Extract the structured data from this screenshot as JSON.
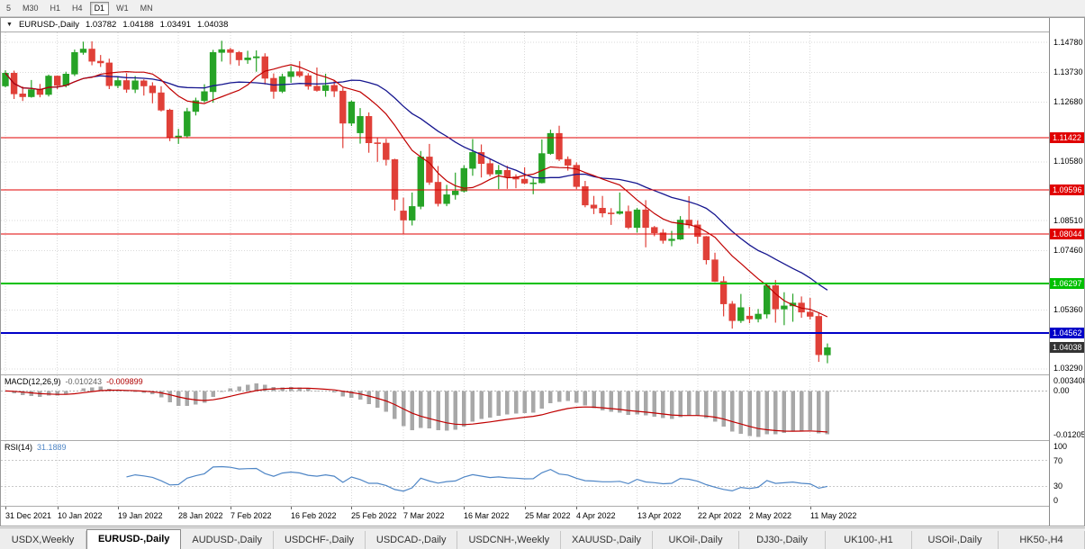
{
  "toolbar": {
    "timeframes": [
      {
        "label": "5",
        "active": false
      },
      {
        "label": "M30",
        "active": false
      },
      {
        "label": "H1",
        "active": false
      },
      {
        "label": "H4",
        "active": false
      },
      {
        "label": "D1",
        "active": true
      },
      {
        "label": "W1",
        "active": false
      },
      {
        "label": "MN",
        "active": false
      }
    ]
  },
  "header": {
    "collapse_icon": "▼",
    "symbol": "EURUSD-,Daily",
    "open": "1.03782",
    "high": "1.04188",
    "low": "1.03491",
    "close": "1.04038"
  },
  "colors": {
    "up_candle": "#26A326",
    "down_candle": "#E04038",
    "ma_fast": "#C00000",
    "ma_slow": "#16168F",
    "grid": "#D9D9D9",
    "macd_hist": "#A8A8A8",
    "macd_signal": "#C00000",
    "rsi_line": "#4F86C6",
    "current_badge": "#333333"
  },
  "price_axis": {
    "labels": [
      "1.14780",
      "1.13730",
      "1.12680",
      "1.10580",
      "1.08510",
      "1.07460",
      "1.05360",
      "1.03290"
    ],
    "current": {
      "label": "1.04038",
      "value": 1.04038
    }
  },
  "chart": {
    "hlines": [
      {
        "value": 1.11422,
        "label": "1.11422",
        "color": "#E00000",
        "width": 1
      },
      {
        "value": 1.09596,
        "label": "1.09596",
        "color": "#E00000",
        "width": 1
      },
      {
        "value": 1.08044,
        "label": "1.08044",
        "color": "#E00000",
        "width": 1
      },
      {
        "value": 1.06297,
        "label": "1.06297",
        "color": "#00C000",
        "width": 2
      },
      {
        "value": 1.04562,
        "label": "1.04562",
        "color": "#0000C8",
        "width": 2
      }
    ],
    "candles": [
      [
        1.1325,
        1.138,
        1.132,
        1.137
      ],
      [
        1.137,
        1.1379,
        1.1279,
        1.1297
      ],
      [
        1.1297,
        1.1323,
        1.1272,
        1.1287
      ],
      [
        1.1287,
        1.1346,
        1.1284,
        1.1312
      ],
      [
        1.1312,
        1.1332,
        1.1285,
        1.1295
      ],
      [
        1.1295,
        1.1365,
        1.1288,
        1.136
      ],
      [
        1.136,
        1.1362,
        1.1314,
        1.1327
      ],
      [
        1.1327,
        1.1375,
        1.132,
        1.1367
      ],
      [
        1.1367,
        1.1453,
        1.136,
        1.1443
      ],
      [
        1.1443,
        1.1481,
        1.1435,
        1.1455
      ],
      [
        1.1455,
        1.1482,
        1.1398,
        1.1412
      ],
      [
        1.1412,
        1.1434,
        1.1392,
        1.1406
      ],
      [
        1.1406,
        1.1421,
        1.1314,
        1.1326
      ],
      [
        1.1326,
        1.1358,
        1.1317,
        1.1344
      ],
      [
        1.1344,
        1.137,
        1.1301,
        1.1313
      ],
      [
        1.1313,
        1.136,
        1.13,
        1.1343
      ],
      [
        1.1343,
        1.1348,
        1.1291,
        1.1325
      ],
      [
        1.1325,
        1.1338,
        1.1264,
        1.1301
      ],
      [
        1.1301,
        1.1324,
        1.1235,
        1.124
      ],
      [
        1.124,
        1.1245,
        1.1131,
        1.1145
      ],
      [
        1.1145,
        1.1174,
        1.1121,
        1.1149
      ],
      [
        1.1149,
        1.1248,
        1.1141,
        1.1235
      ],
      [
        1.1235,
        1.1284,
        1.1221,
        1.1273
      ],
      [
        1.1273,
        1.1331,
        1.1267,
        1.1305
      ],
      [
        1.1305,
        1.1452,
        1.1266,
        1.1443
      ],
      [
        1.1443,
        1.1484,
        1.1411,
        1.1453
      ],
      [
        1.1453,
        1.1459,
        1.1401,
        1.1443
      ],
      [
        1.1443,
        1.1448,
        1.1396,
        1.1417
      ],
      [
        1.1417,
        1.1449,
        1.1403,
        1.1424
      ],
      [
        1.1424,
        1.145,
        1.1375,
        1.1428
      ],
      [
        1.1428,
        1.144,
        1.133,
        1.1352
      ],
      [
        1.1352,
        1.1369,
        1.128,
        1.1306
      ],
      [
        1.1306,
        1.1368,
        1.13,
        1.1358
      ],
      [
        1.1358,
        1.1395,
        1.1336,
        1.1375
      ],
      [
        1.1375,
        1.1412,
        1.1355,
        1.1361
      ],
      [
        1.1361,
        1.137,
        1.1312,
        1.1324
      ],
      [
        1.1324,
        1.139,
        1.1305,
        1.1309
      ],
      [
        1.1309,
        1.1368,
        1.1287,
        1.1327
      ],
      [
        1.1327,
        1.1344,
        1.1286,
        1.1307
      ],
      [
        1.1307,
        1.1319,
        1.1106,
        1.1194
      ],
      [
        1.1194,
        1.1274,
        1.1184,
        1.1269
      ],
      [
        1.116,
        1.1247,
        1.1122,
        1.1218
      ],
      [
        1.1218,
        1.1232,
        1.109,
        1.1125
      ],
      [
        1.1125,
        1.1143,
        1.1058,
        1.1124
      ],
      [
        1.1124,
        1.1139,
        1.1045,
        1.1066
      ],
      [
        1.1066,
        1.1069,
        1.0886,
        1.0926
      ],
      [
        1.0885,
        1.0932,
        1.0806,
        1.0853
      ],
      [
        1.0853,
        1.095,
        1.0834,
        1.0901
      ],
      [
        1.0901,
        1.1096,
        1.0891,
        1.1075
      ],
      [
        1.1075,
        1.1121,
        1.0977,
        1.0986
      ],
      [
        1.0986,
        1.1043,
        1.0901,
        1.0911
      ],
      [
        1.0911,
        1.0977,
        1.0902,
        1.0942
      ],
      [
        1.0942,
        1.102,
        1.0925,
        1.0955
      ],
      [
        1.0955,
        1.1046,
        1.095,
        1.1035
      ],
      [
        1.1035,
        1.1138,
        1.1009,
        1.1091
      ],
      [
        1.1091,
        1.1119,
        1.1003,
        1.1052
      ],
      [
        1.1052,
        1.1069,
        1.1007,
        1.1015
      ],
      [
        1.1015,
        1.1047,
        1.0962,
        1.1028
      ],
      [
        1.1028,
        1.1044,
        1.0963,
        1.1005
      ],
      [
        1.1005,
        1.1014,
        1.0965,
        1.0997
      ],
      [
        1.0997,
        1.1039,
        1.0979,
        1.0983
      ],
      [
        1.0983,
        1.0999,
        1.0944,
        1.0984
      ],
      [
        1.0984,
        1.1137,
        1.0982,
        1.1087
      ],
      [
        1.1087,
        1.1171,
        1.1083,
        1.1158
      ],
      [
        1.1158,
        1.1185,
        1.1061,
        1.1067
      ],
      [
        1.1067,
        1.1077,
        1.1027,
        1.1046
      ],
      [
        1.1046,
        1.1056,
        1.0962,
        1.0971
      ],
      [
        1.0971,
        1.0991,
        1.0898,
        1.0906
      ],
      [
        1.0906,
        1.0938,
        1.0874,
        1.0895
      ],
      [
        1.0895,
        1.0938,
        1.0863,
        1.0878
      ],
      [
        1.0878,
        1.0895,
        1.0836,
        1.0876
      ],
      [
        1.0876,
        1.095,
        1.0872,
        1.0883
      ],
      [
        1.0883,
        1.0904,
        1.0821,
        1.0827
      ],
      [
        1.0827,
        1.0896,
        1.0809,
        1.0889
      ],
      [
        1.0889,
        1.0923,
        1.0757,
        1.0827
      ],
      [
        1.0827,
        1.0832,
        1.0796,
        1.0808
      ],
      [
        1.0808,
        1.0821,
        1.077,
        1.0781
      ],
      [
        1.0781,
        1.0815,
        1.0761,
        1.0786
      ],
      [
        1.0786,
        1.0867,
        1.0783,
        1.0853
      ],
      [
        1.0853,
        1.0937,
        1.0824,
        1.0836
      ],
      [
        1.0836,
        1.0852,
        1.077,
        1.0795
      ],
      [
        1.0795,
        1.0797,
        1.0697,
        1.0713
      ],
      [
        1.0713,
        1.0738,
        1.0635,
        1.0637
      ],
      [
        1.0637,
        1.0655,
        1.0514,
        1.0558
      ],
      [
        1.0558,
        1.0568,
        1.0471,
        1.0499
      ],
      [
        1.0499,
        1.0593,
        1.0491,
        1.0545
      ],
      [
        1.0515,
        1.0547,
        1.049,
        1.0505
      ],
      [
        1.0505,
        1.054,
        1.0493,
        1.0522
      ],
      [
        1.0522,
        1.063,
        1.0507,
        1.0622
      ],
      [
        1.0622,
        1.0642,
        1.0492,
        1.054
      ],
      [
        1.054,
        1.0599,
        1.0483,
        1.0551
      ],
      [
        1.0551,
        1.0594,
        1.0495,
        1.0561
      ],
      [
        1.0561,
        1.0584,
        1.0509,
        1.0529
      ],
      [
        1.0529,
        1.0579,
        1.0503,
        1.0514
      ],
      [
        1.0514,
        1.0527,
        1.0354,
        1.0379
      ],
      [
        1.03782,
        1.04188,
        1.03491,
        1.04038
      ]
    ]
  },
  "time_axis": {
    "labels": [
      {
        "text": "31 Dec 2021",
        "index": 0
      },
      {
        "text": "10 Jan 2022",
        "index": 6
      },
      {
        "text": "19 Jan 2022",
        "index": 13
      },
      {
        "text": "28 Jan 2022",
        "index": 20
      },
      {
        "text": "7 Feb 2022",
        "index": 26
      },
      {
        "text": "16 Feb 2022",
        "index": 33
      },
      {
        "text": "25 Feb 2022",
        "index": 40
      },
      {
        "text": "7 Mar 2022",
        "index": 46
      },
      {
        "text": "16 Mar 2022",
        "index": 53
      },
      {
        "text": "25 Mar 2022",
        "index": 60
      },
      {
        "text": "4 Apr 2022",
        "index": 66
      },
      {
        "text": "13 Apr 2022",
        "index": 73
      },
      {
        "text": "22 Apr 2022",
        "index": 80
      },
      {
        "text": "2 May 2022",
        "index": 86
      },
      {
        "text": "11 May 2022",
        "index": 93
      }
    ]
  },
  "macd": {
    "name": "MACD(12,26,9)",
    "value": "-0.010243",
    "signal": "-0.009899",
    "axis": [
      "0.003408",
      "0.00",
      "-0.01205"
    ],
    "params": {
      "fast": 12,
      "slow": 26,
      "signal": 9
    }
  },
  "rsi": {
    "name": "RSI(14)",
    "value": "31.1889",
    "axis": [
      "100",
      "70",
      "30",
      "0"
    ],
    "period": 14
  },
  "tabs": {
    "items": [
      {
        "label": "USDX,Weekly",
        "active": false
      },
      {
        "label": "EURUSD-,Daily",
        "active": true
      },
      {
        "label": "AUDUSD-,Daily",
        "active": false
      },
      {
        "label": "USDCHF-,Daily",
        "active": false
      },
      {
        "label": "USDCAD-,Daily",
        "active": false
      },
      {
        "label": "USDCNH-,Weekly",
        "active": false
      },
      {
        "label": "XAUUSD-,Daily",
        "active": false
      },
      {
        "label": "UKOil-,Daily",
        "active": false
      },
      {
        "label": "DJ30-,Daily",
        "active": false
      },
      {
        "label": "UK100-,H1",
        "active": false
      },
      {
        "label": "USOil-,Daily",
        "active": false
      },
      {
        "label": "HK50-,H4",
        "active": false
      }
    ]
  }
}
